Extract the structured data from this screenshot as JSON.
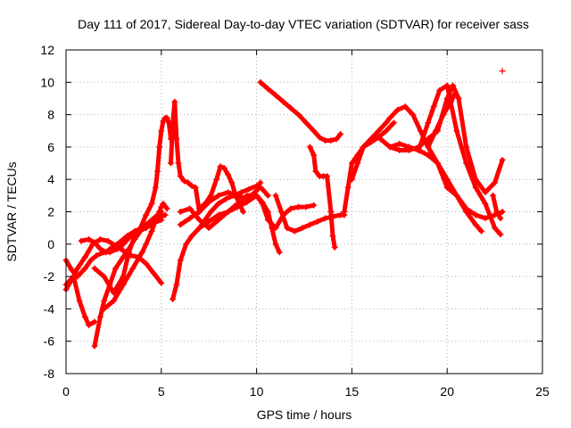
{
  "chart_data": {
    "type": "scatter",
    "title": "Day 111 of 2017, Sidereal Day-to-day VTEC variation (SDTVAR) for receiver sass",
    "xlabel": "GPS time / hours",
    "ylabel": "SDTVAR / TECUs",
    "xlim": [
      0,
      25
    ],
    "ylim": [
      -8,
      12
    ],
    "xticks": [
      0,
      5,
      10,
      15,
      20,
      25
    ],
    "yticks": [
      -8,
      -6,
      -4,
      -2,
      0,
      2,
      4,
      6,
      8,
      10,
      12
    ],
    "grid": true,
    "marker": "+",
    "color": "#ff0000",
    "series": [
      {
        "name": "s1",
        "x": [
          0.0,
          0.3,
          0.6,
          1.0,
          1.3,
          1.6,
          2.0,
          2.3,
          2.7,
          3.0,
          3.4,
          3.8,
          4.2,
          4.6,
          5.0
        ],
        "y": [
          -1.0,
          -1.6,
          -2.0,
          -1.5,
          -1.0,
          -0.7,
          -0.5,
          -0.5,
          -0.3,
          0.0,
          0.5,
          0.8,
          1.0,
          1.3,
          1.5
        ]
      },
      {
        "name": "s2",
        "x": [
          0.0,
          0.3,
          0.6,
          1.0,
          1.4,
          1.8,
          2.2,
          2.6,
          3.0,
          3.4,
          3.8,
          4.2,
          4.6,
          5.0
        ],
        "y": [
          -2.8,
          -2.2,
          -1.5,
          -0.8,
          0.0,
          0.3,
          0.2,
          -0.1,
          -0.4,
          -0.7,
          -0.8,
          -1.2,
          -1.8,
          -2.4
        ]
      },
      {
        "name": "s3",
        "x": [
          0.0,
          0.4,
          0.7,
          1.0,
          1.2,
          1.5
        ],
        "y": [
          -2.5,
          -2.0,
          -3.5,
          -4.5,
          -5.0,
          -4.8
        ]
      },
      {
        "name": "s4",
        "x": [
          0.8,
          1.2,
          1.5,
          1.8,
          2.1,
          2.4,
          2.8,
          3.2,
          3.6,
          4.0,
          4.4,
          4.8,
          5.2
        ],
        "y": [
          0.2,
          0.3,
          0.1,
          -0.3,
          -0.5,
          -0.2,
          0.1,
          0.5,
          0.8,
          1.0,
          1.3,
          1.6,
          1.8
        ]
      },
      {
        "name": "s5",
        "x": [
          1.5,
          1.8,
          2.0,
          2.3,
          2.6,
          3.0,
          3.3,
          3.6,
          3.9,
          4.2,
          4.5,
          4.8,
          5.0
        ],
        "y": [
          -6.3,
          -4.5,
          -3.5,
          -2.5,
          -1.5,
          -0.8,
          -0.3,
          0.3,
          0.8,
          1.2,
          1.5,
          1.8,
          2.0
        ]
      },
      {
        "name": "s6",
        "x": [
          1.5,
          2.0,
          2.5,
          3.0,
          3.3,
          3.6,
          3.9,
          4.2,
          4.5,
          4.7,
          4.8,
          4.9,
          5.0,
          5.1,
          5.2,
          5.3,
          5.4,
          5.5
        ],
        "y": [
          -1.5,
          -2.0,
          -3.0,
          -2.0,
          -0.5,
          0.5,
          1.0,
          1.8,
          2.5,
          3.5,
          4.5,
          6.0,
          7.0,
          7.6,
          7.8,
          7.8,
          7.5,
          6.5
        ]
      },
      {
        "name": "s7",
        "x": [
          2.0,
          2.5,
          3.0,
          3.5,
          4.0,
          4.2,
          4.5,
          4.7,
          4.9,
          5.0,
          5.1,
          5.3
        ],
        "y": [
          -4.0,
          -3.5,
          -2.5,
          -1.5,
          -0.5,
          0.0,
          0.8,
          1.5,
          2.0,
          2.3,
          2.5,
          2.2
        ]
      },
      {
        "name": "s8",
        "x": [
          5.5,
          5.6,
          5.7,
          5.8,
          5.9,
          6.0,
          6.2,
          6.4,
          6.6,
          6.8,
          7.0
        ],
        "y": [
          5.0,
          7.5,
          8.8,
          6.5,
          5.0,
          4.2,
          3.9,
          3.8,
          3.6,
          3.5,
          2.0
        ]
      },
      {
        "name": "s9",
        "x": [
          5.6,
          5.8,
          6.0,
          6.3,
          6.6,
          7.0,
          7.3,
          7.6,
          8.0,
          8.4,
          8.8,
          9.2,
          9.6,
          10.0,
          10.3,
          10.6
        ],
        "y": [
          -3.4,
          -2.5,
          -1.0,
          0.0,
          0.5,
          1.0,
          1.5,
          2.0,
          2.5,
          2.8,
          3.0,
          3.2,
          3.4,
          3.6,
          3.4,
          3.0
        ]
      },
      {
        "name": "s10",
        "x": [
          6.0,
          6.5,
          7.0,
          7.5,
          8.0,
          8.5,
          9.0,
          9.5,
          10.0,
          10.2
        ],
        "y": [
          1.2,
          1.6,
          2.0,
          2.6,
          3.0,
          3.2,
          3.0,
          2.8,
          3.3,
          3.8
        ]
      },
      {
        "name": "s11",
        "x": [
          7.0,
          7.3,
          7.6,
          7.9,
          8.1,
          8.3,
          8.5,
          8.7,
          8.9,
          9.1,
          9.3
        ],
        "y": [
          2.2,
          2.5,
          3.0,
          4.0,
          4.8,
          4.7,
          4.3,
          3.8,
          3.0,
          2.5,
          2.0
        ]
      },
      {
        "name": "s12",
        "x": [
          6.0,
          6.5,
          7.0,
          7.5,
          8.0,
          8.5,
          9.0,
          9.5,
          10.0,
          10.3,
          10.6,
          11.0,
          11.4,
          11.8,
          12.2,
          12.6,
          13.0
        ],
        "y": [
          2.0,
          2.2,
          1.5,
          1.0,
          1.5,
          2.0,
          2.5,
          3.0,
          3.0,
          2.5,
          1.5,
          1.0,
          1.8,
          2.2,
          2.3,
          2.3,
          2.4
        ]
      },
      {
        "name": "s13",
        "x": [
          7.0,
          7.5,
          8.0,
          8.5,
          9.0,
          9.5,
          10.0,
          10.3,
          10.6,
          10.8,
          11.0,
          11.2
        ],
        "y": [
          1.0,
          1.4,
          1.8,
          2.0,
          2.3,
          2.6,
          3.0,
          2.6,
          2.0,
          1.0,
          0.0,
          -0.5
        ]
      },
      {
        "name": "s14",
        "x": [
          10.2,
          10.6,
          11.0,
          11.4,
          11.8,
          12.2,
          12.6,
          13.0,
          13.3,
          13.6,
          13.9,
          14.2,
          14.4
        ],
        "y": [
          10.0,
          9.6,
          9.2,
          8.8,
          8.4,
          8.0,
          7.5,
          7.0,
          6.6,
          6.4,
          6.4,
          6.5,
          6.8
        ]
      },
      {
        "name": "s15",
        "x": [
          11.0,
          11.3,
          11.6,
          12.0,
          12.4,
          12.8,
          13.2,
          13.6,
          14.0,
          14.4,
          14.6
        ],
        "y": [
          3.0,
          2.0,
          1.0,
          0.8,
          1.0,
          1.2,
          1.4,
          1.6,
          1.7,
          1.8,
          1.8
        ]
      },
      {
        "name": "s16",
        "x": [
          12.8,
          13.0,
          13.1,
          13.3,
          13.5,
          13.7,
          13.9,
          14.0,
          14.1
        ],
        "y": [
          6.0,
          5.5,
          4.5,
          4.2,
          4.2,
          4.2,
          2.0,
          0.5,
          -0.2
        ]
      },
      {
        "name": "s17",
        "x": [
          14.6,
          14.8,
          15.0,
          15.3,
          15.6,
          16.0,
          16.4,
          16.8,
          17.2
        ],
        "y": [
          2.0,
          3.5,
          5.0,
          5.5,
          6.0,
          6.3,
          6.6,
          7.0,
          7.5
        ]
      },
      {
        "name": "s18",
        "x": [
          15.0,
          15.3,
          15.6,
          16.0,
          16.4,
          16.8,
          17.0,
          17.4,
          17.8,
          18.2,
          18.6,
          19.0,
          19.4,
          19.8,
          20.2,
          20.4
        ],
        "y": [
          4.0,
          5.0,
          6.0,
          6.5,
          7.0,
          7.5,
          7.8,
          8.3,
          8.5,
          8.0,
          7.0,
          6.0,
          7.0,
          8.0,
          8.8,
          9.3
        ]
      },
      {
        "name": "s19",
        "x": [
          16.5,
          17.0,
          17.5,
          18.0,
          18.5,
          19.0,
          19.5,
          20.0,
          20.3,
          20.6,
          21.0,
          21.5,
          22.0,
          22.5,
          22.9
        ],
        "y": [
          6.5,
          6.0,
          5.8,
          5.8,
          6.0,
          6.5,
          7.0,
          9.0,
          9.8,
          9.0,
          6.0,
          4.0,
          3.2,
          3.8,
          5.2
        ]
      },
      {
        "name": "s20",
        "x": [
          17.0,
          17.5,
          18.0,
          18.5,
          19.0,
          19.3,
          19.6,
          20.0,
          20.5,
          21.0,
          21.5,
          22.0,
          22.5,
          22.8
        ],
        "y": [
          6.0,
          6.2,
          6.0,
          5.8,
          7.5,
          8.5,
          9.5,
          9.8,
          7.0,
          5.0,
          3.5,
          2.5,
          1.0,
          0.6
        ]
      },
      {
        "name": "s21",
        "x": [
          18.0,
          18.5,
          19.0,
          19.5,
          20.0,
          20.5,
          21.0,
          21.5,
          22.0,
          22.5,
          22.9
        ],
        "y": [
          6.0,
          5.8,
          5.5,
          5.0,
          4.0,
          3.0,
          2.2,
          1.8,
          1.6,
          1.8,
          2.0
        ]
      },
      {
        "name": "s22",
        "x": [
          19.0,
          19.5,
          20.0,
          20.5,
          21.0,
          21.5,
          21.8
        ],
        "y": [
          6.0,
          5.0,
          3.5,
          3.0,
          2.0,
          1.2,
          0.8
        ]
      },
      {
        "name": "s23",
        "x": [
          22.4,
          22.6,
          22.8
        ],
        "y": [
          3.0,
          2.0,
          1.6
        ]
      },
      {
        "name": "s24",
        "x": [
          22.9
        ],
        "y": [
          10.7
        ]
      }
    ]
  }
}
